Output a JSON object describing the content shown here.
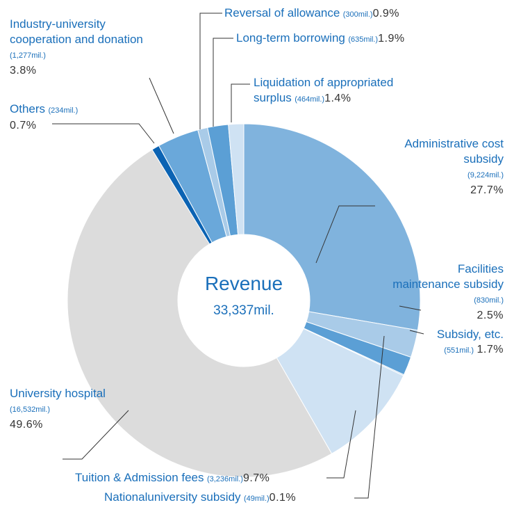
{
  "chart_data": {
    "type": "pie",
    "donut": true,
    "center_title": "Revenue",
    "center_subtitle": "33,337mil.",
    "labels": [
      "Administrative cost subsidy",
      "Facilities maintenance subsidy",
      "Subsidy, etc.",
      "Nationaluniversity subsidy",
      "Tuition & Admission fees",
      "University hospital",
      "Others",
      "Industry-university cooperation and donation",
      "Reversal of allowance",
      "Long-term borrowing",
      "Liquidation of appropriated surplus"
    ],
    "amounts": [
      "(9,224mil.)",
      "(830mil.)",
      "(551mil.)",
      "(49mil.)",
      "(3,236mil.)",
      "(16,532mil.)",
      "(234mil.)",
      "(1,277mil.)",
      "(300mil.)",
      "(635mil.)",
      "(464mil.)"
    ],
    "values": [
      27.7,
      2.5,
      1.7,
      0.1,
      9.7,
      49.6,
      0.7,
      3.8,
      0.9,
      1.9,
      1.4
    ],
    "value_labels": [
      "27.7%",
      "2.5%",
      "1.7%",
      "0.1%",
      "9.7%",
      "49.6%",
      "0.7%",
      "3.8%",
      "0.9%",
      "1.9%",
      "1.4%"
    ],
    "colors": [
      "#80b3dd",
      "#a9cbe8",
      "#5b9fd5",
      "#a9cbe8",
      "#cfe2f3",
      "#dcdcdc",
      "#0b63b3",
      "#6aa8da",
      "#a9cbe8",
      "#5b9fd5",
      "#cfe2f3"
    ]
  }
}
